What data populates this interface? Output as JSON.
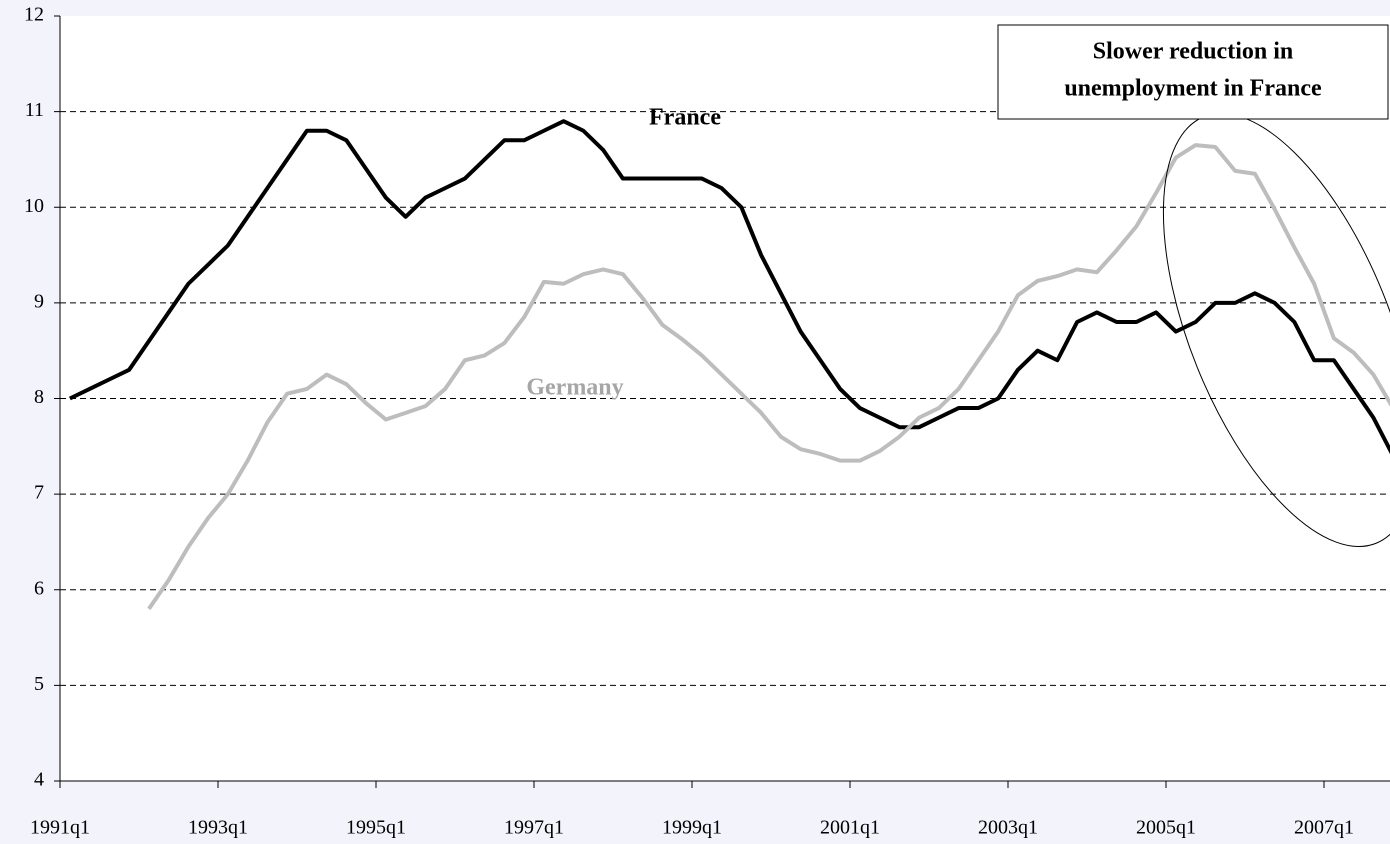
{
  "chart_data": {
    "type": "line",
    "categories": [
      "1991q1",
      null,
      null,
      null,
      null,
      null,
      null,
      null,
      "1993q1",
      null,
      null,
      null,
      null,
      null,
      null,
      null,
      "1995q1",
      null,
      null,
      null,
      null,
      null,
      null,
      null,
      "1997q1",
      null,
      null,
      null,
      null,
      null,
      null,
      null,
      "1999q1",
      null,
      null,
      null,
      null,
      null,
      null,
      null,
      "2001q1",
      null,
      null,
      null,
      null,
      null,
      null,
      null,
      "2003q1",
      null,
      null,
      null,
      null,
      null,
      null,
      null,
      "2005q1",
      null,
      null,
      null,
      null,
      null,
      null,
      null,
      "2007q1",
      null,
      null,
      null
    ],
    "series": [
      {
        "name": "France",
        "color": "#000000",
        "values": [
          8.0,
          8.1,
          8.2,
          8.3,
          8.6,
          8.9,
          9.2,
          9.4,
          9.6,
          9.9,
          10.2,
          10.5,
          10.8,
          10.8,
          10.7,
          10.4,
          10.1,
          9.9,
          10.1,
          10.2,
          10.3,
          10.5,
          10.7,
          10.7,
          10.8,
          10.9,
          10.8,
          10.6,
          10.3,
          10.3,
          10.3,
          10.3,
          10.3,
          10.2,
          10.0,
          9.5,
          9.1,
          8.7,
          8.4,
          8.1,
          7.9,
          7.8,
          7.7,
          7.7,
          7.8,
          7.9,
          7.9,
          8.0,
          8.3,
          8.5,
          8.4,
          8.8,
          8.9,
          8.8,
          8.8,
          8.9,
          8.7,
          8.8,
          9.0,
          9.0,
          9.1,
          9.0,
          8.8,
          8.4,
          8.4,
          8.1,
          7.8,
          7.4
        ]
      },
      {
        "name": "Germany",
        "color": "#bdbdbd",
        "values": [
          null,
          null,
          null,
          null,
          5.8,
          6.1,
          6.45,
          6.75,
          7.0,
          7.35,
          7.75,
          8.05,
          8.1,
          8.25,
          8.15,
          7.95,
          7.78,
          7.85,
          7.92,
          8.1,
          8.4,
          8.45,
          8.58,
          8.85,
          9.22,
          9.2,
          9.3,
          9.35,
          9.3,
          9.05,
          8.77,
          8.62,
          8.45,
          8.25,
          8.05,
          7.85,
          7.6,
          7.47,
          7.42,
          7.35,
          7.35,
          7.45,
          7.6,
          7.8,
          7.9,
          8.1,
          8.4,
          8.7,
          9.08,
          9.23,
          9.28,
          9.35,
          9.32,
          9.55,
          9.8,
          10.15,
          10.52,
          10.65,
          10.63,
          10.38,
          10.35,
          9.98,
          9.58,
          9.2,
          8.63,
          8.48,
          8.25,
          7.9
        ]
      }
    ],
    "ylim": [
      4,
      12
    ],
    "yticks": [
      4,
      5,
      6,
      7,
      8,
      9,
      10,
      11,
      12
    ],
    "grid": true,
    "annotations": [
      "Slower reduction in",
      "unemployment in France"
    ]
  }
}
